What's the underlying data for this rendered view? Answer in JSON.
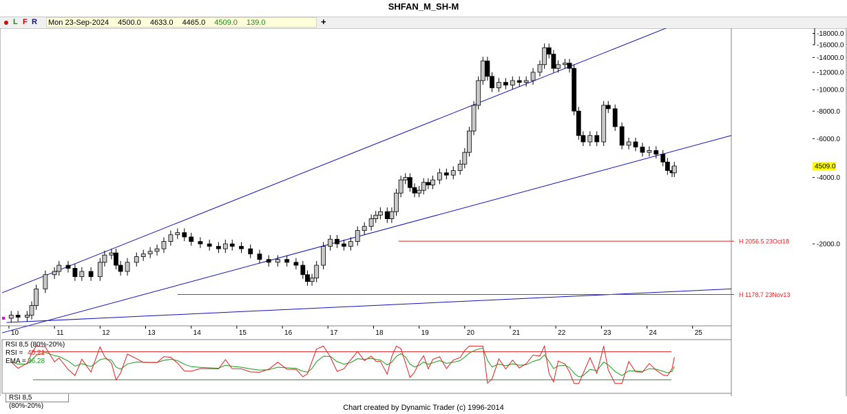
{
  "title": "SHFAN_M_SH-M",
  "toolbar": {
    "buttons": [
      "L",
      "F",
      "R"
    ],
    "date": "Mon 23-Sep-2024",
    "open": "4500.0",
    "high": "4633.0",
    "low": "4465.0",
    "close": "4509.0",
    "change": "139.0",
    "add_label": "+"
  },
  "colors": {
    "channel": "#1010c0",
    "level": "#e02020",
    "rsi": "#e02020",
    "ema": "#1a9a1a",
    "price_tag": "#ffff00"
  },
  "price_axis": {
    "ticks": [
      "18000.0",
      "16000.0",
      "14000.0",
      "12000.0",
      "10000.0",
      "8000.0",
      "6000.0",
      "4000.0",
      "2000.0"
    ],
    "last_price": "4509.0"
  },
  "time_axis": {
    "ticks": [
      "10",
      "11",
      "12",
      "13",
      "14",
      "15",
      "16",
      "17",
      "18",
      "19",
      "20",
      "21",
      "22",
      "23",
      "24",
      "25"
    ]
  },
  "levels": [
    {
      "label": "H 2056.5 23Oct18",
      "value": 2056.5
    },
    {
      "label": "H 1178.7 23Nov13",
      "value": 1178.7
    }
  ],
  "rsi_panel": {
    "header": "RSI 8,5 (80%-20%)",
    "rsi_label": "RSI =",
    "rsi_value": "40.21",
    "ema_label": "EMA =",
    "ema_value": "36.28",
    "tab_label": "RSI 8,5 (80%-20%)",
    "upper": 80,
    "lower": 20
  },
  "footer": "Chart created by Dynamic Trader  (c) 1996-2014",
  "chart_data": {
    "type": "candlestick",
    "title": "SHFAN_M_SH-M",
    "scale": "log",
    "x_unit": "year (yy)",
    "y_range": [
      850,
      19000
    ],
    "price_ticks": [
      18000,
      16000,
      14000,
      12000,
      10000,
      8000,
      6000,
      4000,
      2000
    ],
    "x_range": [
      9.85,
      25.85
    ],
    "time_ticks": [
      10,
      11,
      12,
      13,
      14,
      15,
      16,
      17,
      18,
      19,
      20,
      21,
      22,
      23,
      24,
      25
    ],
    "last_bar": {
      "date": "Mon 23-Sep-2024",
      "open": 4500.0,
      "high": 4633.0,
      "low": 4465.0,
      "close": 4509.0,
      "change": 139.0
    },
    "horizontal_levels": [
      {
        "label": "H 2056.5 23Oct18",
        "value": 2056.5,
        "from_x": 18.55
      },
      {
        "label": "H 1178.7 23Nov13",
        "value": 1178.7,
        "from_x": 13.7
      }
    ],
    "channel_lines": [
      {
        "name": "upper",
        "points": [
          [
            9.85,
            1200
          ],
          [
            24.55,
            19500
          ]
        ]
      },
      {
        "name": "middle",
        "points": [
          [
            9.85,
            790
          ],
          [
            25.85,
            6200
          ]
        ]
      },
      {
        "name": "lower",
        "points": [
          [
            9.95,
            880
          ],
          [
            25.85,
            1250
          ]
        ]
      }
    ],
    "price_path": [
      [
        9.95,
        920
      ],
      [
        10.05,
        950
      ],
      [
        10.2,
        930
      ],
      [
        10.4,
        950
      ],
      [
        10.5,
        1050
      ],
      [
        10.6,
        1250
      ],
      [
        10.8,
        1450
      ],
      [
        11.0,
        1500
      ],
      [
        11.1,
        1600
      ],
      [
        11.3,
        1550
      ],
      [
        11.45,
        1420
      ],
      [
        11.6,
        1500
      ],
      [
        11.8,
        1420
      ],
      [
        12.0,
        1650
      ],
      [
        12.1,
        1780
      ],
      [
        12.25,
        1820
      ],
      [
        12.35,
        1600
      ],
      [
        12.45,
        1500
      ],
      [
        12.6,
        1650
      ],
      [
        12.8,
        1750
      ],
      [
        12.95,
        1800
      ],
      [
        13.1,
        1850
      ],
      [
        13.25,
        1900
      ],
      [
        13.4,
        2050
      ],
      [
        13.55,
        2200
      ],
      [
        13.7,
        2250
      ],
      [
        13.85,
        2150
      ],
      [
        14.0,
        2050
      ],
      [
        14.2,
        2000
      ],
      [
        14.4,
        1950
      ],
      [
        14.6,
        1900
      ],
      [
        14.75,
        2000
      ],
      [
        14.9,
        1950
      ],
      [
        15.1,
        1900
      ],
      [
        15.3,
        1800
      ],
      [
        15.5,
        1700
      ],
      [
        15.7,
        1650
      ],
      [
        15.9,
        1700
      ],
      [
        16.1,
        1650
      ],
      [
        16.3,
        1600
      ],
      [
        16.45,
        1450
      ],
      [
        16.55,
        1350
      ],
      [
        16.65,
        1400
      ],
      [
        16.75,
        1600
      ],
      [
        16.9,
        1950
      ],
      [
        17.05,
        2100
      ],
      [
        17.2,
        2000
      ],
      [
        17.35,
        1950
      ],
      [
        17.5,
        2050
      ],
      [
        17.65,
        2300
      ],
      [
        17.8,
        2400
      ],
      [
        17.95,
        2600
      ],
      [
        18.05,
        2700
      ],
      [
        18.15,
        2800
      ],
      [
        18.3,
        2600
      ],
      [
        18.4,
        2800
      ],
      [
        18.5,
        3400
      ],
      [
        18.6,
        3900
      ],
      [
        18.7,
        4000
      ],
      [
        18.8,
        3600
      ],
      [
        18.9,
        3400
      ],
      [
        19.0,
        3500
      ],
      [
        19.1,
        3800
      ],
      [
        19.2,
        3700
      ],
      [
        19.3,
        3900
      ],
      [
        19.45,
        4200
      ],
      [
        19.6,
        4100
      ],
      [
        19.75,
        4300
      ],
      [
        19.9,
        4600
      ],
      [
        20.0,
        5200
      ],
      [
        20.1,
        6500
      ],
      [
        20.2,
        8500
      ],
      [
        20.3,
        11000
      ],
      [
        20.4,
        13500
      ],
      [
        20.5,
        11500
      ],
      [
        20.6,
        10200
      ],
      [
        20.75,
        10800
      ],
      [
        20.9,
        10500
      ],
      [
        21.05,
        11000
      ],
      [
        21.2,
        10800
      ],
      [
        21.35,
        11000
      ],
      [
        21.5,
        12000
      ],
      [
        21.65,
        13000
      ],
      [
        21.75,
        15500
      ],
      [
        21.85,
        14500
      ],
      [
        21.95,
        12500
      ],
      [
        22.05,
        13000
      ],
      [
        22.2,
        13200
      ],
      [
        22.3,
        12500
      ],
      [
        22.4,
        8000
      ],
      [
        22.5,
        6200
      ],
      [
        22.6,
        5800
      ],
      [
        22.75,
        6200
      ],
      [
        22.9,
        5800
      ],
      [
        23.05,
        8500
      ],
      [
        23.15,
        8200
      ],
      [
        23.3,
        6800
      ],
      [
        23.45,
        5600
      ],
      [
        23.6,
        5800
      ],
      [
        23.75,
        5500
      ],
      [
        23.9,
        5200
      ],
      [
        24.05,
        5300
      ],
      [
        24.2,
        5100
      ],
      [
        24.35,
        4700
      ],
      [
        24.45,
        4300
      ],
      [
        24.55,
        4200
      ],
      [
        24.6,
        4509
      ]
    ],
    "rsi": {
      "name": "RSI 8,5 (80%-20%)",
      "last": 40.21,
      "ema_last": 36.28,
      "overbought": 80,
      "oversold": 20
    }
  }
}
